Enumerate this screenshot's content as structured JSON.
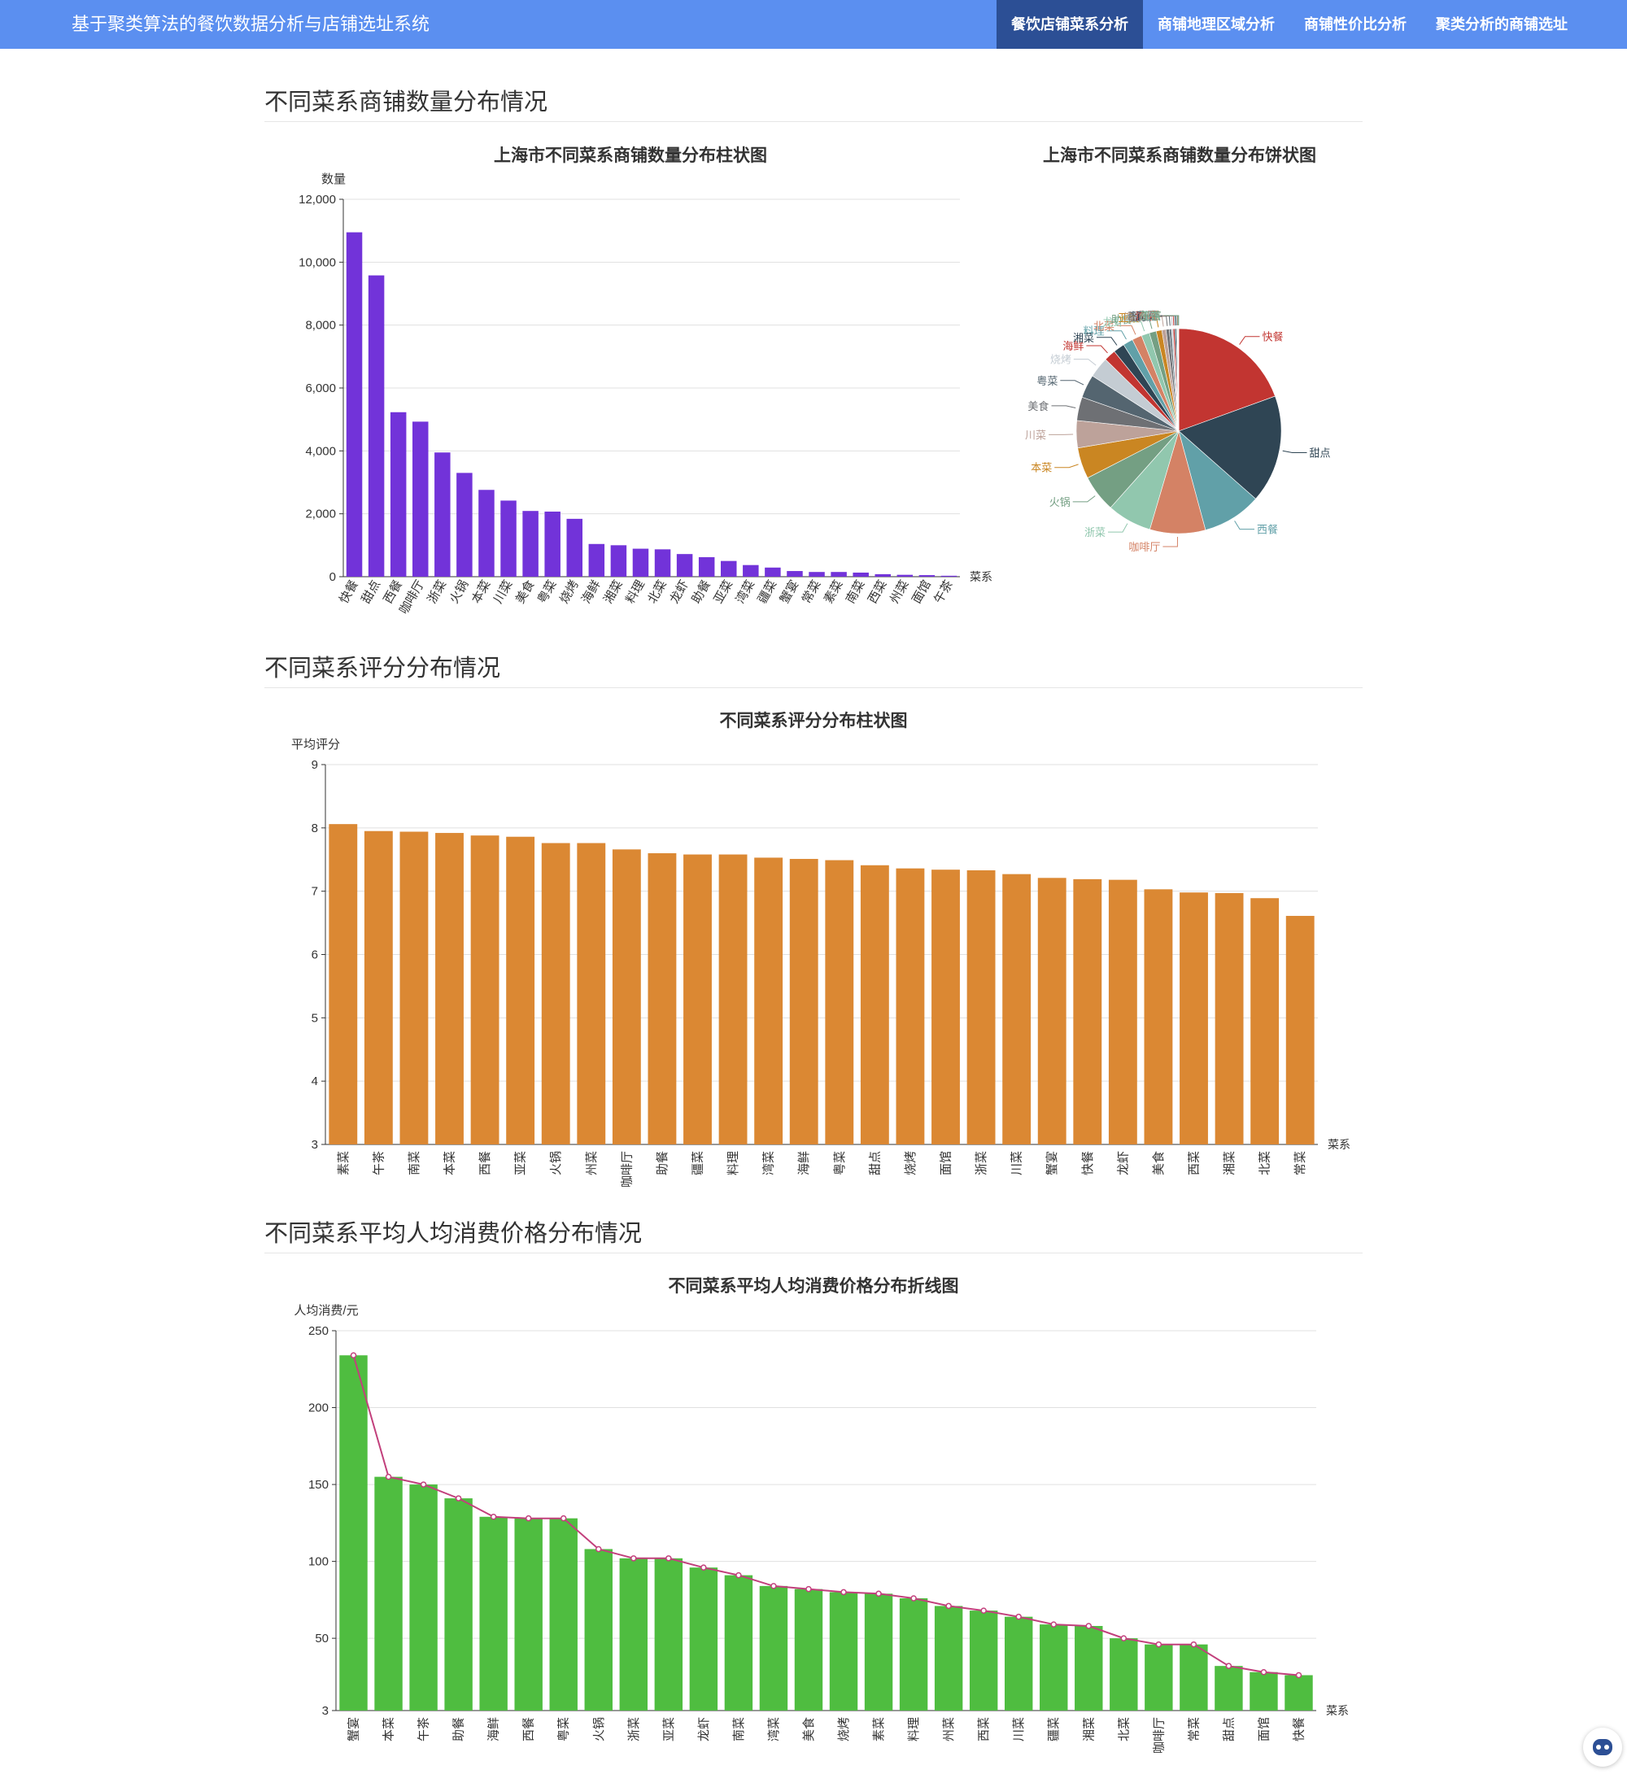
{
  "app": {
    "title": "基于聚类算法的餐饮数据分析与店铺选址系统",
    "nav": [
      "餐饮店铺菜系分析",
      "商铺地理区域分析",
      "商铺性价比分析",
      "聚类分析的商铺选址"
    ],
    "active_nav": 0
  },
  "sections": {
    "count_title": "不同菜系商铺数量分布情况",
    "rating_title": "不同菜系评分分布情况",
    "price_title": "不同菜系平均人均消费价格分布情况"
  },
  "chart_data": [
    {
      "type": "bar",
      "id": "count_bar",
      "title": "上海市不同菜系商铺数量分布柱状图",
      "ylabel": "数量",
      "xlabel": "菜系",
      "ylim": [
        0,
        12000
      ],
      "yticks": [
        0,
        2000,
        4000,
        6000,
        8000,
        10000,
        12000
      ],
      "categories": [
        "快餐",
        "甜点",
        "西餐",
        "咖啡厅",
        "浙菜",
        "火锅",
        "本菜",
        "川菜",
        "美食",
        "粤菜",
        "烧烤",
        "海鲜",
        "湘菜",
        "料理",
        "北菜",
        "龙虾",
        "助餐",
        "亚菜",
        "湾菜",
        "疆菜",
        "蟹宴",
        "常菜",
        "素菜",
        "南菜",
        "西菜",
        "州菜",
        "面馆",
        "午茶"
      ],
      "values": [
        10950,
        9580,
        5230,
        4930,
        3950,
        3300,
        2760,
        2420,
        2090,
        2070,
        1840,
        1040,
        1000,
        890,
        870,
        720,
        620,
        500,
        370,
        290,
        180,
        150,
        150,
        130,
        80,
        60,
        50,
        30
      ],
      "color": "#7233d9"
    },
    {
      "type": "pie",
      "id": "count_pie",
      "title": "上海市不同菜系商铺数量分布饼状图",
      "labels": [
        "快餐",
        "甜点",
        "西餐",
        "咖啡厅",
        "浙菜",
        "火锅",
        "本菜",
        "川菜",
        "美食",
        "粤菜",
        "烧烤",
        "海鲜",
        "湘菜",
        "料理",
        "北菜",
        "龙虾",
        "助餐",
        "亚菜",
        "湾菜",
        "疆菜",
        "蟹宴",
        "常菜",
        "素菜",
        "南菜",
        "西菜",
        "州菜",
        "面馆",
        "午茶"
      ],
      "values": [
        10950,
        9580,
        5230,
        4930,
        3950,
        3300,
        2760,
        2420,
        2090,
        2070,
        1840,
        1040,
        1000,
        890,
        870,
        720,
        620,
        500,
        370,
        290,
        180,
        150,
        150,
        130,
        80,
        60,
        50,
        30
      ],
      "colors": [
        "#c23531",
        "#2f4554",
        "#61a0a8",
        "#d48265",
        "#91c7ae",
        "#749f83",
        "#ca8622",
        "#bda29a",
        "#6e7074",
        "#546570",
        "#c4ccd3",
        "#c23531",
        "#2f4554",
        "#61a0a8",
        "#d48265",
        "#91c7ae",
        "#749f83",
        "#ca8622",
        "#bda29a",
        "#6e7074",
        "#546570",
        "#c4ccd3",
        "#c23531",
        "#2f4554",
        "#61a0a8",
        "#d48265",
        "#91c7ae",
        "#749f83"
      ]
    },
    {
      "type": "bar",
      "id": "rating_bar",
      "title": "不同菜系评分分布柱状图",
      "ylabel": "平均评分",
      "xlabel": "菜系",
      "ylim": [
        3,
        9
      ],
      "yticks": [
        3,
        4,
        5,
        6,
        7,
        8,
        9
      ],
      "categories": [
        "素菜",
        "午茶",
        "南菜",
        "本菜",
        "西餐",
        "亚菜",
        "火锅",
        "州菜",
        "咖啡厅",
        "助餐",
        "疆菜",
        "料理",
        "湾菜",
        "海鲜",
        "粤菜",
        "甜点",
        "烧烤",
        "面馆",
        "浙菜",
        "川菜",
        "蟹宴",
        "快餐",
        "龙虾",
        "美食",
        "西菜",
        "湘菜",
        "北菜",
        "常菜"
      ],
      "values": [
        8.06,
        7.95,
        7.94,
        7.92,
        7.88,
        7.86,
        7.76,
        7.76,
        7.66,
        7.6,
        7.58,
        7.58,
        7.53,
        7.51,
        7.49,
        7.41,
        7.36,
        7.34,
        7.33,
        7.27,
        7.21,
        7.19,
        7.18,
        7.03,
        6.98,
        6.97,
        6.89,
        6.61
      ],
      "color": "#db8833"
    },
    {
      "type": "bar",
      "id": "price_bar",
      "title": "不同菜系平均人均消费价格分布折线图",
      "ylabel": "人均消费/元",
      "xlabel": "菜系",
      "ylim": [
        3,
        250
      ],
      "yticks": [
        3,
        50,
        100,
        150,
        200,
        250
      ],
      "categories": [
        "蟹宴",
        "本菜",
        "午茶",
        "助餐",
        "海鲜",
        "西餐",
        "粤菜",
        "火锅",
        "浙菜",
        "亚菜",
        "龙虾",
        "南菜",
        "湾菜",
        "美食",
        "烧烤",
        "素菜",
        "料理",
        "州菜",
        "西菜",
        "川菜",
        "疆菜",
        "湘菜",
        "北菜",
        "咖啡厅",
        "常菜",
        "甜点",
        "面馆",
        "快餐"
      ],
      "values": [
        234,
        155,
        150,
        141,
        129,
        128,
        128,
        108,
        102,
        102,
        96,
        91,
        84,
        82,
        80,
        79,
        76,
        71,
        68,
        64,
        59,
        58,
        50,
        46,
        46,
        32,
        28,
        26
      ],
      "color": "#4fbd40",
      "line_color": "#c2407c"
    }
  ]
}
